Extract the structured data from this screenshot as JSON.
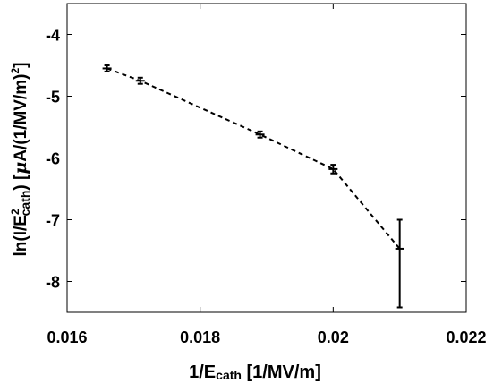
{
  "chart_data": {
    "type": "scatter",
    "title": "",
    "xlabel": {
      "main": "1/E",
      "sub": "cath",
      "tail": " [1/MV/m]"
    },
    "ylabel": {
      "pre": "ln(I/E",
      "sup": "2",
      "sub": "cath",
      "mid": ") [",
      "mu": "μ",
      "post": "A/(1/MV/m)",
      "sup2": "2",
      "end": "]"
    },
    "xlim": [
      0.016,
      0.022
    ],
    "ylim": [
      -8.5,
      -3.5
    ],
    "xticks": [
      0.016,
      0.018,
      0.02,
      0.022
    ],
    "xtick_labels": [
      "0.016",
      "0.018",
      "0.02",
      "0.022"
    ],
    "yticks": [
      -8,
      -7,
      -6,
      -5,
      -4
    ],
    "ytick_labels": [
      "-8",
      "-7",
      "-6",
      "-5",
      "-4"
    ],
    "grid": false,
    "line_style": "dashed",
    "marker": "plus",
    "series": [
      {
        "x": [
          0.0166,
          0.0171,
          0.0189,
          0.02,
          0.021
        ],
        "y": [
          -4.55,
          -4.75,
          -5.62,
          -6.18,
          -7.47
        ],
        "yerr_low": [
          0.05,
          0.05,
          0.05,
          0.07,
          0.95
        ],
        "yerr_high": [
          0.05,
          0.05,
          0.05,
          0.07,
          0.47
        ],
        "color": "#000000"
      }
    ]
  }
}
